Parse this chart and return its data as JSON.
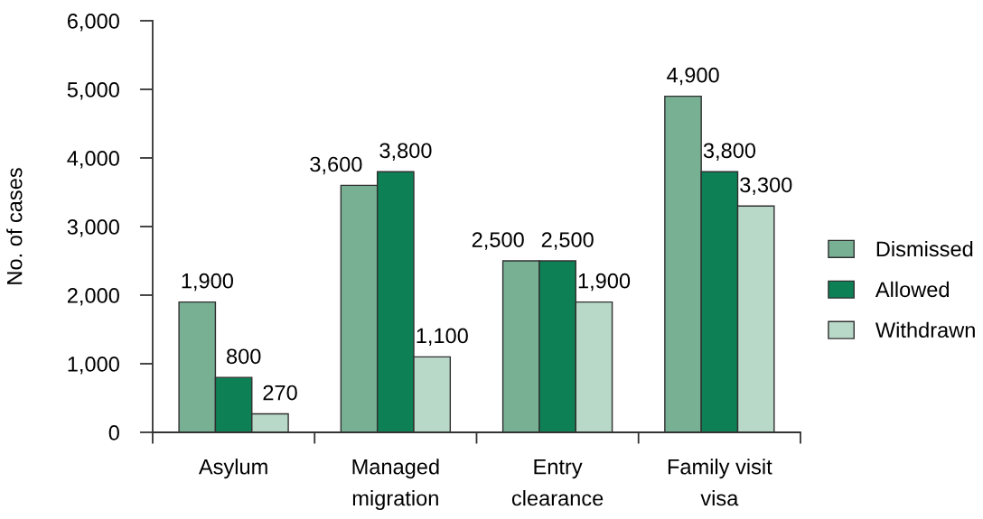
{
  "chart_data": {
    "type": "bar",
    "ylabel": "No. of cases",
    "categories": [
      "Asylum",
      "Managed\nmigration",
      "Entry\nclearance",
      "Family visit\nvisa"
    ],
    "series": [
      {
        "name": "Dismissed",
        "color": "#78b094",
        "values": [
          1900,
          3600,
          2500,
          4900
        ],
        "value_labels": [
          "1,900",
          "3,600",
          "2,500",
          "4,900"
        ]
      },
      {
        "name": "Allowed",
        "color": "#0e8055",
        "values": [
          800,
          3800,
          2500,
          3800
        ],
        "value_labels": [
          "800",
          "3,800",
          "2,500",
          "3,800"
        ]
      },
      {
        "name": "Withdrawn",
        "color": "#b8d8c8",
        "values": [
          270,
          1100,
          1900,
          3300
        ],
        "value_labels": [
          "270",
          "1,100",
          "1,900",
          "3,300"
        ]
      }
    ],
    "ylim": [
      0,
      6000
    ],
    "yticks": [
      0,
      {
        "value": 1000,
        "label": "1,000"
      },
      {
        "value": 2000,
        "label": "2,000"
      },
      {
        "value": 3000,
        "label": "3,000"
      },
      {
        "value": 4000,
        "label": "4,000"
      },
      {
        "value": 5000,
        "label": "5,000"
      },
      {
        "value": 6000,
        "label": "6,000"
      }
    ],
    "grid": false,
    "legend": "right"
  }
}
